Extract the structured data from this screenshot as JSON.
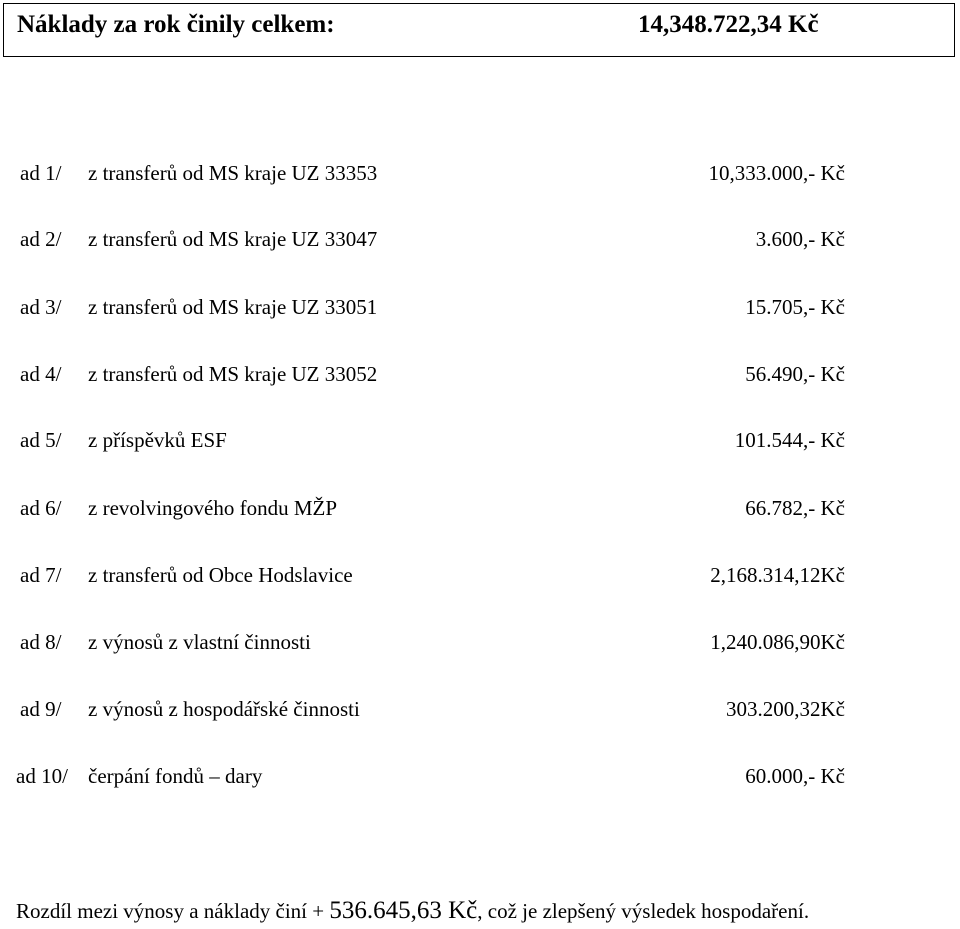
{
  "header": {
    "label": "Náklady za rok činily celkem:",
    "value": "14,348.722,34 Kč"
  },
  "items": [
    {
      "num": "ad 1/",
      "desc": "z transferů od MS kraje UZ 33353",
      "amount": "10,333.000,-  Kč"
    },
    {
      "num": "ad 2/",
      "desc": "z transferů od MS kraje UZ 33047",
      "amount": "3.600,-  Kč"
    },
    {
      "num": "ad 3/",
      "desc": "z transferů od MS kraje UZ 33051",
      "amount": "15.705,-  Kč"
    },
    {
      "num": "ad 4/",
      "desc": "z transferů od MS kraje UZ 33052",
      "amount": "56.490,-  Kč"
    },
    {
      "num": "ad 5/",
      "desc": "z příspěvků ESF",
      "amount": "101.544,-  Kč"
    },
    {
      "num": "ad 6/",
      "desc": "z revolvingového fondu MŽP",
      "amount": "66.782,-  Kč"
    },
    {
      "num": "ad 7/",
      "desc": "z transferů od Obce Hodslavice",
      "amount": "2,168.314,12Kč"
    },
    {
      "num": "ad 8/",
      "desc": "z výnosů z vlastní činnosti",
      "amount": "1,240.086,90Kč"
    },
    {
      "num": "ad 9/",
      "desc": "z výnosů z hospodářské činnosti",
      "amount": "303.200,32Kč"
    },
    {
      "num": "ad 10/",
      "desc": "čerpání fondů – dary",
      "amount": "60.000,-  Kč"
    }
  ],
  "summary": {
    "prefix": "Rozdíl mezi výnosy a náklady činí + ",
    "amount": "536.645,63 Kč",
    "suffix": ", což je zlepšený výsledek hospodaření."
  }
}
